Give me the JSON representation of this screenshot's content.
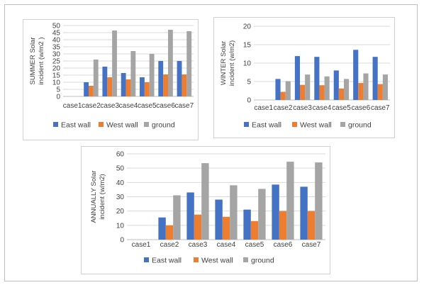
{
  "colors": {
    "East wall": "#4472c4",
    "West wall": "#ed7d31",
    "ground": "#a5a5a5"
  },
  "chart_data": [
    {
      "id": "summer",
      "type": "bar",
      "ylabel": "SUMMER Solar incident  (w/m2 )",
      "ylim": [
        0,
        50
      ],
      "yticks": [
        0,
        5,
        10,
        15,
        20,
        25,
        30,
        35,
        40,
        45,
        50
      ],
      "categories": [
        "case1",
        "case2",
        "case3",
        "case4",
        "case5",
        "case6",
        "case7"
      ],
      "series": [
        {
          "name": "East wall",
          "values": [
            0,
            10,
            21,
            16.5,
            13.5,
            25,
            25
          ]
        },
        {
          "name": "West wall",
          "values": [
            0,
            7.5,
            13.5,
            12,
            10,
            15.5,
            15.5
          ]
        },
        {
          "name": "ground",
          "values": [
            0,
            26,
            46.5,
            32,
            30,
            47,
            46
          ]
        }
      ],
      "legend": "bottom",
      "grid": true
    },
    {
      "id": "winter",
      "type": "bar",
      "ylabel": "WINTER Solar incident  (w/m2)",
      "ylim": [
        0,
        20
      ],
      "yticks": [
        0,
        5,
        10,
        15,
        20
      ],
      "categories": [
        "case1",
        "case2",
        "case3",
        "case4",
        "case5",
        "case6",
        "case7"
      ],
      "series": [
        {
          "name": "East wall",
          "values": [
            0,
            5.7,
            11.9,
            11.7,
            8,
            13.6,
            11.7
          ]
        },
        {
          "name": "West wall",
          "values": [
            0,
            2.2,
            4.1,
            4,
            3.1,
            4.6,
            4.3
          ]
        },
        {
          "name": "ground",
          "values": [
            0,
            5.1,
            6.9,
            6.4,
            5.7,
            7.2,
            6.9
          ]
        }
      ],
      "legend": "bottom",
      "grid": true
    },
    {
      "id": "annual",
      "type": "bar",
      "ylabel": "ANNUALLY  Solar incident  (w/m2)",
      "ylim": [
        0,
        60
      ],
      "yticks": [
        0,
        10,
        20,
        30,
        40,
        50,
        60
      ],
      "categories": [
        "case1",
        "case2",
        "case3",
        "case4",
        "case5",
        "case6",
        "case7"
      ],
      "series": [
        {
          "name": "East wall",
          "values": [
            0,
            15.5,
            33,
            28,
            21,
            38.5,
            37
          ]
        },
        {
          "name": "West wall",
          "values": [
            0,
            10,
            17.5,
            16,
            13,
            20,
            20
          ]
        },
        {
          "name": "ground",
          "values": [
            0,
            31,
            53.5,
            38,
            35.5,
            54.5,
            54
          ]
        }
      ],
      "legend": "bottom",
      "grid": true
    }
  ]
}
